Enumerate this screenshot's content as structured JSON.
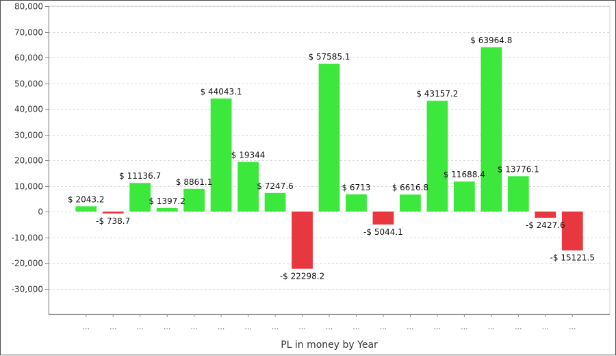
{
  "chart_data": {
    "type": "bar",
    "xlabel": "PL in money by Year",
    "ylabel": "",
    "ylim": [
      -40000,
      80000
    ],
    "yticks": [
      80000,
      70000,
      60000,
      50000,
      40000,
      30000,
      20000,
      10000,
      0,
      -10000,
      -20000,
      -30000
    ],
    "ytick_labels": [
      "80,000",
      "70,000",
      "60,000",
      "50,000",
      "40,000",
      "30,000",
      "20,000",
      "10,000",
      "0",
      "-10,000",
      "-20,000",
      "-30,000"
    ],
    "grid": true,
    "categories": [
      "...",
      "...",
      "...",
      "...",
      "...",
      "...",
      "...",
      "...",
      "...",
      "...",
      "...",
      "...",
      "...",
      "...",
      "...",
      "...",
      "...",
      "...",
      "..."
    ],
    "values": [
      2043.2,
      -738.7,
      11136.7,
      1397.2,
      8861.1,
      44043.1,
      19344,
      7247.6,
      -22298.2,
      57585.1,
      6713,
      -5044.1,
      6616.8,
      43157.2,
      11688.4,
      63964.8,
      13776.1,
      -2427.6,
      -15121.5
    ],
    "data_labels": [
      "$ 2043.2",
      "-$ 738.7",
      "$ 11136.7",
      "$ 1397.2",
      "$ 8861.1",
      "$ 44043.1",
      "$ 19344",
      "$ 7247.6",
      "-$ 22298.2",
      "$ 57585.1",
      "$ 6713",
      "-$ 5044.1",
      "$ 6616.8",
      "$ 43157.2",
      "$ 11688.4",
      "$ 63964.8",
      "$ 13776.1",
      "-$ 2427.6",
      "-$ 15121.5"
    ],
    "colors": {
      "positive": "#3de83d",
      "negative": "#e8373f"
    }
  }
}
